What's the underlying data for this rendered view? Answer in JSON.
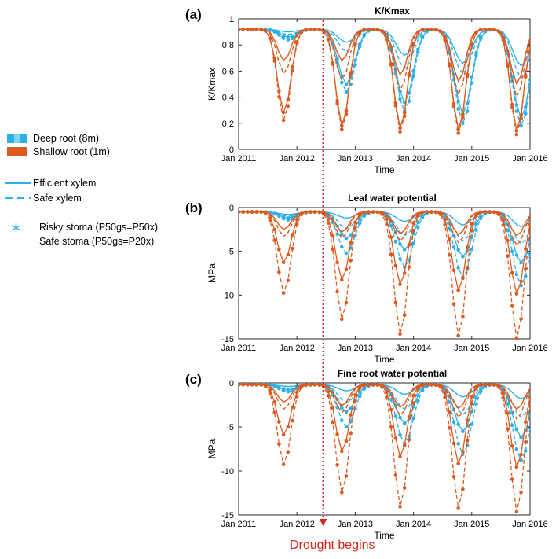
{
  "legend": {
    "deep_root": "Deep root (8m)",
    "shallow_root": "Shallow root  (1m)",
    "efficient_xylem": "Efficient xylem",
    "safe_xylem": "Safe xylem",
    "risky_stoma": "Risky stoma (P50gs=P50x)",
    "safe_stoma": "Safe stoma (P50gs=P20x)",
    "star_glyph": "*"
  },
  "annotation": {
    "drought_label": "Drought begins",
    "drought_x": 2012.45
  },
  "colors": {
    "deep": "#2cb0e8",
    "shallow": "#dd5a1e",
    "drought": "#d9261c"
  },
  "chart_data": [
    {
      "panel_label": "(a)",
      "type": "line",
      "title": "K/Kmax",
      "xlabel": "Time",
      "ylabel": "K/Kmax",
      "xlim": [
        2011,
        2016
      ],
      "ylim": [
        0,
        1
      ],
      "xtick_values": [
        2011,
        2012,
        2013,
        2014,
        2015,
        2016
      ],
      "xtick_labels": [
        "Jan 2011",
        "Jan 2012",
        "Jan 2013",
        "Jan 2014",
        "Jan 2015",
        "Jan 2016"
      ],
      "ytick_values": [
        0,
        0.2,
        0.4,
        0.6,
        0.8,
        1
      ],
      "ytick_labels": [
        "0",
        "0.2",
        "0.4",
        "0.6",
        "0.8",
        "1"
      ],
      "baseline": 0.92,
      "series": [
        {
          "name": "Deep root, efficient xylem, safe stoma",
          "root": "deep",
          "xylem": "efficient",
          "stoma": "safe",
          "minima": [
            0.9,
            0.82,
            0.72,
            0.66,
            0.64
          ]
        },
        {
          "name": "Deep root, safe xylem, safe stoma",
          "root": "deep",
          "xylem": "safe",
          "stoma": "safe",
          "minima": [
            0.88,
            0.75,
            0.62,
            0.58,
            0.55
          ]
        },
        {
          "name": "Deep root, efficient xylem, risky stoma",
          "root": "deep",
          "xylem": "efficient",
          "stoma": "risky",
          "minima": [
            0.86,
            0.5,
            0.36,
            0.27,
            0.24
          ]
        },
        {
          "name": "Deep root, safe xylem, risky stoma",
          "root": "deep",
          "xylem": "safe",
          "stoma": "risky",
          "minima": [
            0.84,
            0.44,
            0.29,
            0.2,
            0.18
          ]
        },
        {
          "name": "Shallow root, efficient xylem, safe stoma",
          "root": "shallow",
          "xylem": "efficient",
          "stoma": "safe",
          "minima": [
            0.68,
            0.68,
            0.57,
            0.52,
            0.5
          ]
        },
        {
          "name": "Shallow root, safe xylem, safe stoma",
          "root": "shallow",
          "xylem": "safe",
          "stoma": "safe",
          "minima": [
            0.58,
            0.53,
            0.45,
            0.42,
            0.4
          ]
        },
        {
          "name": "Shallow root, efficient xylem, risky stoma",
          "root": "shallow",
          "xylem": "efficient",
          "stoma": "risky",
          "minima": [
            0.28,
            0.18,
            0.16,
            0.15,
            0.14
          ]
        },
        {
          "name": "Shallow root, safe xylem, risky stoma",
          "root": "shallow",
          "xylem": "safe",
          "stoma": "risky",
          "minima": [
            0.22,
            0.15,
            0.13,
            0.12,
            0.11
          ]
        }
      ]
    },
    {
      "panel_label": "(b)",
      "type": "line",
      "title": "Leaf water potential",
      "xlabel": "Time",
      "ylabel": "MPa",
      "xlim": [
        2011,
        2016
      ],
      "ylim": [
        -15,
        0
      ],
      "xtick_values": [
        2011,
        2012,
        2013,
        2014,
        2015,
        2016
      ],
      "xtick_labels": [
        "Jan 2011",
        "Jan 2012",
        "Jan 2013",
        "Jan 2014",
        "Jan 2015",
        "Jan 2016"
      ],
      "ytick_values": [
        -15,
        -10,
        -5,
        0
      ],
      "ytick_labels": [
        "-15",
        "-10",
        "-5",
        "0"
      ],
      "baseline": -0.5,
      "series": [
        {
          "name": "Deep root, efficient xylem, safe stoma",
          "root": "deep",
          "xylem": "efficient",
          "stoma": "safe",
          "minima": [
            -0.8,
            -1.2,
            -1.6,
            -2.0,
            -2.2
          ]
        },
        {
          "name": "Deep root, safe xylem, safe stoma",
          "root": "deep",
          "xylem": "safe",
          "stoma": "safe",
          "minima": [
            -1.0,
            -2.4,
            -3.2,
            -3.8,
            -4.1
          ]
        },
        {
          "name": "Deep root, efficient xylem, risky stoma",
          "root": "deep",
          "xylem": "efficient",
          "stoma": "risky",
          "minima": [
            -1.2,
            -3.5,
            -4.8,
            -5.6,
            -6.3
          ]
        },
        {
          "name": "Deep root, safe xylem, risky stoma",
          "root": "deep",
          "xylem": "safe",
          "stoma": "risky",
          "minima": [
            -1.4,
            -5.2,
            -6.8,
            -8.0,
            -8.9
          ]
        },
        {
          "name": "Shallow root, efficient xylem, safe stoma",
          "root": "shallow",
          "xylem": "efficient",
          "stoma": "safe",
          "minima": [
            -2.5,
            -2.8,
            -3.0,
            -3.1,
            -3.2
          ]
        },
        {
          "name": "Shallow root, safe xylem, safe stoma",
          "root": "shallow",
          "xylem": "safe",
          "stoma": "safe",
          "minima": [
            -3.3,
            -3.5,
            -3.8,
            -4.0,
            -4.3
          ]
        },
        {
          "name": "Shallow root, efficient xylem, risky stoma",
          "root": "shallow",
          "xylem": "efficient",
          "stoma": "risky",
          "minima": [
            -6.3,
            -8.3,
            -8.8,
            -9.5,
            -9.9
          ]
        },
        {
          "name": "Shallow root, safe xylem, risky stoma",
          "root": "shallow",
          "xylem": "safe",
          "stoma": "risky",
          "minima": [
            -9.8,
            -12.8,
            -14.5,
            -14.7,
            -15.0
          ]
        }
      ]
    },
    {
      "panel_label": "(c)",
      "type": "line",
      "title": "Fine root water potential",
      "xlabel": "Time",
      "ylabel": "MPa",
      "xlim": [
        2011,
        2016
      ],
      "ylim": [
        -15,
        0
      ],
      "xtick_values": [
        2011,
        2012,
        2013,
        2014,
        2015,
        2016
      ],
      "xtick_labels": [
        "Jan 2011",
        "Jan 2012",
        "Jan 2013",
        "Jan 2014",
        "Jan 2015",
        "Jan 2016"
      ],
      "ytick_values": [
        -15,
        -10,
        -5,
        0
      ],
      "ytick_labels": [
        "-15",
        "-10",
        "-5",
        "0"
      ],
      "baseline": -0.2,
      "series": [
        {
          "name": "Deep root, efficient xylem, safe stoma",
          "root": "deep",
          "xylem": "efficient",
          "stoma": "safe",
          "minima": [
            -0.4,
            -0.9,
            -1.3,
            -1.6,
            -1.8
          ]
        },
        {
          "name": "Deep root, safe xylem, safe stoma",
          "root": "deep",
          "xylem": "safe",
          "stoma": "safe",
          "minima": [
            -0.6,
            -2.2,
            -3.0,
            -3.6,
            -3.9
          ]
        },
        {
          "name": "Deep root, efficient xylem, risky stoma",
          "root": "deep",
          "xylem": "efficient",
          "stoma": "risky",
          "minima": [
            -0.8,
            -3.3,
            -4.6,
            -5.5,
            -6.2
          ]
        },
        {
          "name": "Deep root, safe xylem, risky stoma",
          "root": "deep",
          "xylem": "safe",
          "stoma": "risky",
          "minima": [
            -1.0,
            -5.0,
            -6.9,
            -8.1,
            -8.8
          ]
        },
        {
          "name": "Shallow root, efficient xylem, safe stoma",
          "root": "shallow",
          "xylem": "efficient",
          "stoma": "safe",
          "minima": [
            -2.2,
            -2.6,
            -2.8,
            -2.9,
            -3.0
          ]
        },
        {
          "name": "Shallow root, safe xylem, safe stoma",
          "root": "shallow",
          "xylem": "safe",
          "stoma": "safe",
          "minima": [
            -3.0,
            -3.4,
            -3.7,
            -3.9,
            -4.1
          ]
        },
        {
          "name": "Shallow root, efficient xylem, risky stoma",
          "root": "shallow",
          "xylem": "efficient",
          "stoma": "risky",
          "minima": [
            -5.9,
            -7.8,
            -8.4,
            -9.2,
            -9.6
          ]
        },
        {
          "name": "Shallow root, safe xylem, risky stoma",
          "root": "shallow",
          "xylem": "safe",
          "stoma": "risky",
          "minima": [
            -9.3,
            -12.5,
            -14.1,
            -14.3,
            -14.7
          ]
        }
      ]
    }
  ]
}
